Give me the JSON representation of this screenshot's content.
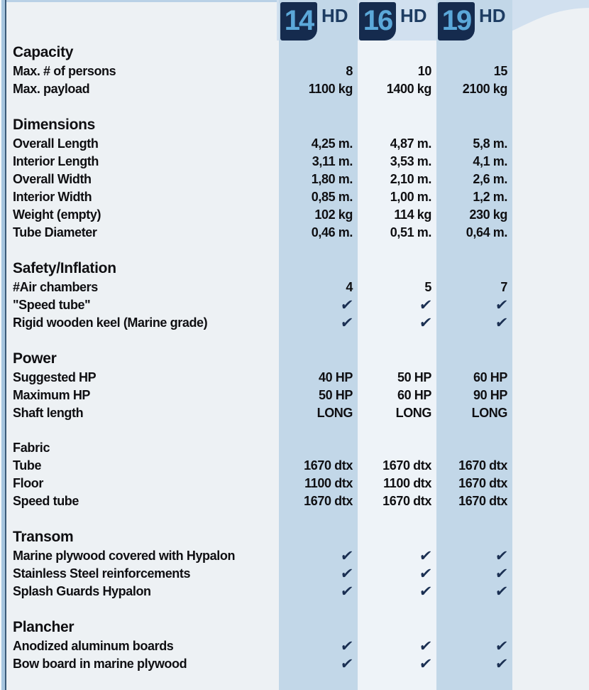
{
  "header": {
    "models": [
      {
        "number": "14",
        "suffix": "HD"
      },
      {
        "number": "16",
        "suffix": "HD"
      },
      {
        "number": "19",
        "suffix": "HD"
      }
    ]
  },
  "check_symbol": "✔",
  "colors": {
    "page_bg": "#edf1f4",
    "band": "#d1e0ef",
    "stripe_dark": "#c2d7e8",
    "stripe_light": "#eef3f8",
    "square_bg": "#152b4e",
    "square_number": "#5ba8d9",
    "hd_text": "#1d3c62",
    "text": "#0f0f12",
    "check": "#1a2f52",
    "top_strip": "#b9d1e6",
    "border_light": "#a7c6df",
    "border_dark": "#3b5a78"
  },
  "sections": [
    {
      "title": "Capacity",
      "rows": [
        {
          "label": "Max. # of persons",
          "values": [
            "8",
            "10",
            "15"
          ]
        },
        {
          "label": "Max. payload",
          "values": [
            "1100 kg",
            "1400 kg",
            "2100 kg"
          ]
        }
      ]
    },
    {
      "title": "Dimensions",
      "rows": [
        {
          "label": "Overall Length",
          "values": [
            "4,25 m.",
            "4,87 m.",
            "5,8 m."
          ]
        },
        {
          "label": "Interior Length",
          "values": [
            "3,11 m.",
            "3,53 m.",
            "4,1 m."
          ]
        },
        {
          "label": "Overall Width",
          "values": [
            "1,80 m.",
            "2,10 m.",
            "2,6 m."
          ]
        },
        {
          "label": "Interior Width",
          "values": [
            "0,85 m.",
            "1,00 m.",
            "1,2 m."
          ]
        },
        {
          "label": "Weight (empty)",
          "values": [
            "102 kg",
            "114 kg",
            "230 kg"
          ]
        },
        {
          "label": "Tube Diameter",
          "values": [
            "0,46 m.",
            "0,51 m.",
            "0,64 m."
          ]
        }
      ]
    },
    {
      "title": "Safety/Inflation",
      "rows": [
        {
          "label": "#Air chambers",
          "values": [
            "4",
            "5",
            "7"
          ]
        },
        {
          "label": "\"Speed tube\"",
          "values": [
            "✔",
            "✔",
            "✔"
          ]
        },
        {
          "label": "Rigid wooden keel (Marine grade)",
          "values": [
            "✔",
            "✔",
            "✔"
          ]
        }
      ]
    },
    {
      "title": "Power",
      "rows": [
        {
          "label": "Suggested HP",
          "values": [
            "40 HP",
            "50 HP",
            "60 HP"
          ]
        },
        {
          "label": "Maximum HP",
          "values": [
            "50 HP",
            "60 HP",
            "90 HP"
          ]
        },
        {
          "label": "Shaft length",
          "values": [
            "LONG",
            "LONG",
            "LONG"
          ]
        }
      ]
    },
    {
      "title": "Fabric",
      "small_title": true,
      "rows": [
        {
          "label": "Tube",
          "values": [
            "1670 dtx",
            "1670 dtx",
            "1670 dtx"
          ]
        },
        {
          "label": "Floor",
          "values": [
            "1100 dtx",
            "1100 dtx",
            "1670 dtx"
          ]
        },
        {
          "label": "Speed tube",
          "values": [
            "1670 dtx",
            "1670 dtx",
            "1670 dtx"
          ]
        }
      ]
    },
    {
      "title": "Transom",
      "rows": [
        {
          "label": "Marine plywood covered with Hypalon",
          "values": [
            "✔",
            "✔",
            "✔"
          ]
        },
        {
          "label": "Stainless Steel reinforcements",
          "values": [
            "✔",
            "✔",
            "✔"
          ]
        },
        {
          "label": "Splash Guards Hypalon",
          "values": [
            "✔",
            "✔",
            "✔"
          ]
        }
      ]
    },
    {
      "title": "Plancher",
      "rows": [
        {
          "label": "Anodized aluminum boards",
          "values": [
            "✔",
            "✔",
            "✔"
          ]
        },
        {
          "label": "Bow board in marine plywood",
          "values": [
            "✔",
            "✔",
            "✔"
          ]
        }
      ]
    }
  ]
}
